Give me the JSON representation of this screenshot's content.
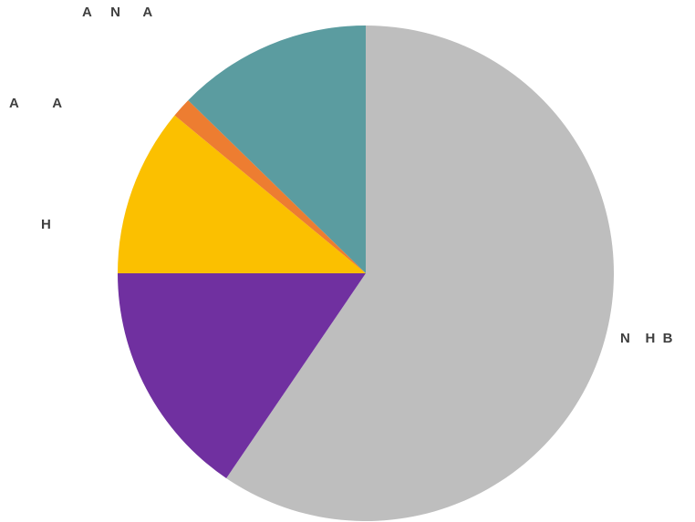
{
  "chart_data": {
    "type": "pie",
    "start_angle_deg": 0,
    "direction": "clockwise",
    "categories": [
      "N    H  B",
      "",
      "A     N      A",
      "H",
      "A         A"
    ],
    "values": [
      59.5,
      15.5,
      11.0,
      1.3,
      12.7
    ],
    "colors": [
      "#bebebe",
      "#7030a0",
      "#fbc000",
      "#ed7d31",
      "#5b9ca0"
    ],
    "legend": "none",
    "labels": [
      {
        "text": "N    H  B",
        "slice": 0
      },
      {
        "text": "A         A",
        "slice": 4
      },
      {
        "text": "A     N      A",
        "slice": 4
      },
      {
        "text": "H",
        "slice": 2
      }
    ]
  }
}
